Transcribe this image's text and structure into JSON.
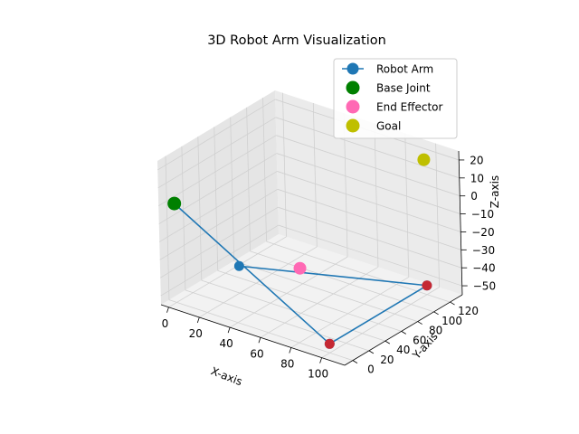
{
  "chart_data": {
    "type": "scatter",
    "projection": "3d",
    "title": "3D Robot Arm Visualization",
    "xlabel": "X-axis",
    "ylabel": "Y-axis",
    "zlabel": "Z-axis",
    "xlim": [
      -5,
      115
    ],
    "ylim": [
      -10,
      135
    ],
    "zlim": [
      -55,
      25
    ],
    "xticks": [
      0,
      20,
      40,
      60,
      80,
      100
    ],
    "yticks": [
      0,
      20,
      40,
      60,
      80,
      100,
      120
    ],
    "zticks": [
      20,
      10,
      0,
      -10,
      -20,
      -30,
      -40,
      -50
    ],
    "grid": true,
    "legend_position": "top-right",
    "legend": [
      "Robot Arm",
      "Base Joint",
      "End Effector",
      "Goal"
    ],
    "series": [
      {
        "name": "Robot Arm",
        "kind": "line-with-markers",
        "color": "#1f77b4",
        "points": [
          {
            "x": 0,
            "y": 0,
            "z": 0
          },
          {
            "x": 100,
            "y": 0,
            "z": -50
          },
          {
            "x": 100,
            "y": 120,
            "z": -50
          },
          {
            "x": 20,
            "y": 40,
            "z": -40
          }
        ]
      },
      {
        "name": "Base Joint",
        "kind": "marker",
        "color": "#008000",
        "points": [
          {
            "x": 0,
            "y": 0,
            "z": 0
          }
        ]
      },
      {
        "name": "End Effector",
        "kind": "marker",
        "color": "#ff69b4",
        "points": [
          {
            "x": 60,
            "y": 40,
            "z": -30
          }
        ]
      },
      {
        "name": "Goal",
        "kind": "marker",
        "color": "#bfbf00",
        "points": [
          {
            "x": 100,
            "y": 120,
            "z": 20
          }
        ]
      },
      {
        "kind": "marker",
        "color": "#e31a1c",
        "points": [
          {
            "x": 100,
            "y": 0,
            "z": -50
          },
          {
            "x": 100,
            "y": 120,
            "z": -50
          }
        ]
      }
    ]
  }
}
